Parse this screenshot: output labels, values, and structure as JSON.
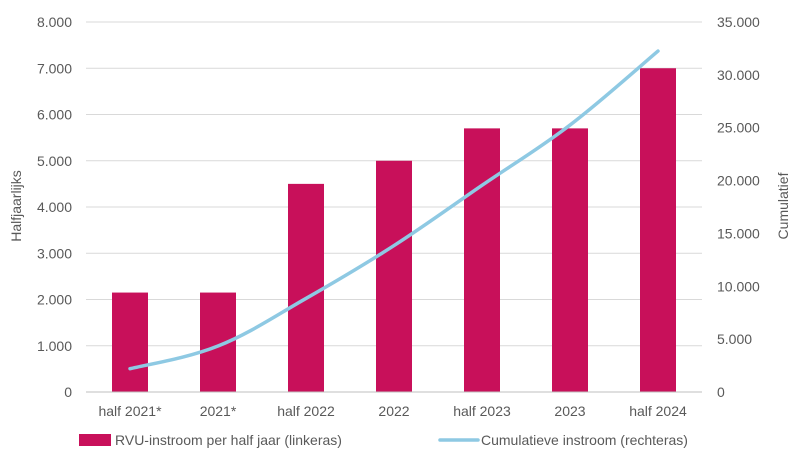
{
  "chart_data": {
    "type": "bar",
    "categories": [
      "half 2021*",
      "2021*",
      "half 2022",
      "2022",
      "half 2023",
      "2023",
      "half 2024"
    ],
    "series": [
      {
        "name": "RVU-instroom per half jaar (linkeras)",
        "type": "bar",
        "axis": "left",
        "color": "#c8105a",
        "values": [
          2150,
          2150,
          4500,
          5000,
          5700,
          5700,
          7000
        ]
      },
      {
        "name": "Cumulatieve instroom (rechteras)",
        "type": "line",
        "axis": "right",
        "color": "#8ec9e3",
        "values": [
          2200,
          4350,
          8850,
          13850,
          19550,
          25250,
          32250
        ]
      }
    ],
    "ylabel": "Halfjaarlijks",
    "y2label": "Cumulatief",
    "ylim": [
      0,
      8000
    ],
    "y2lim": [
      0,
      35000
    ],
    "yticks": [
      "0",
      "1.000",
      "2.000",
      "3.000",
      "4.000",
      "5.000",
      "6.000",
      "7.000",
      "8.000"
    ],
    "y2ticks": [
      "0",
      "5.000",
      "10.000",
      "15.000",
      "20.000",
      "25.000",
      "30.000",
      "35.000"
    ],
    "grid": true,
    "legend": "bottom"
  }
}
